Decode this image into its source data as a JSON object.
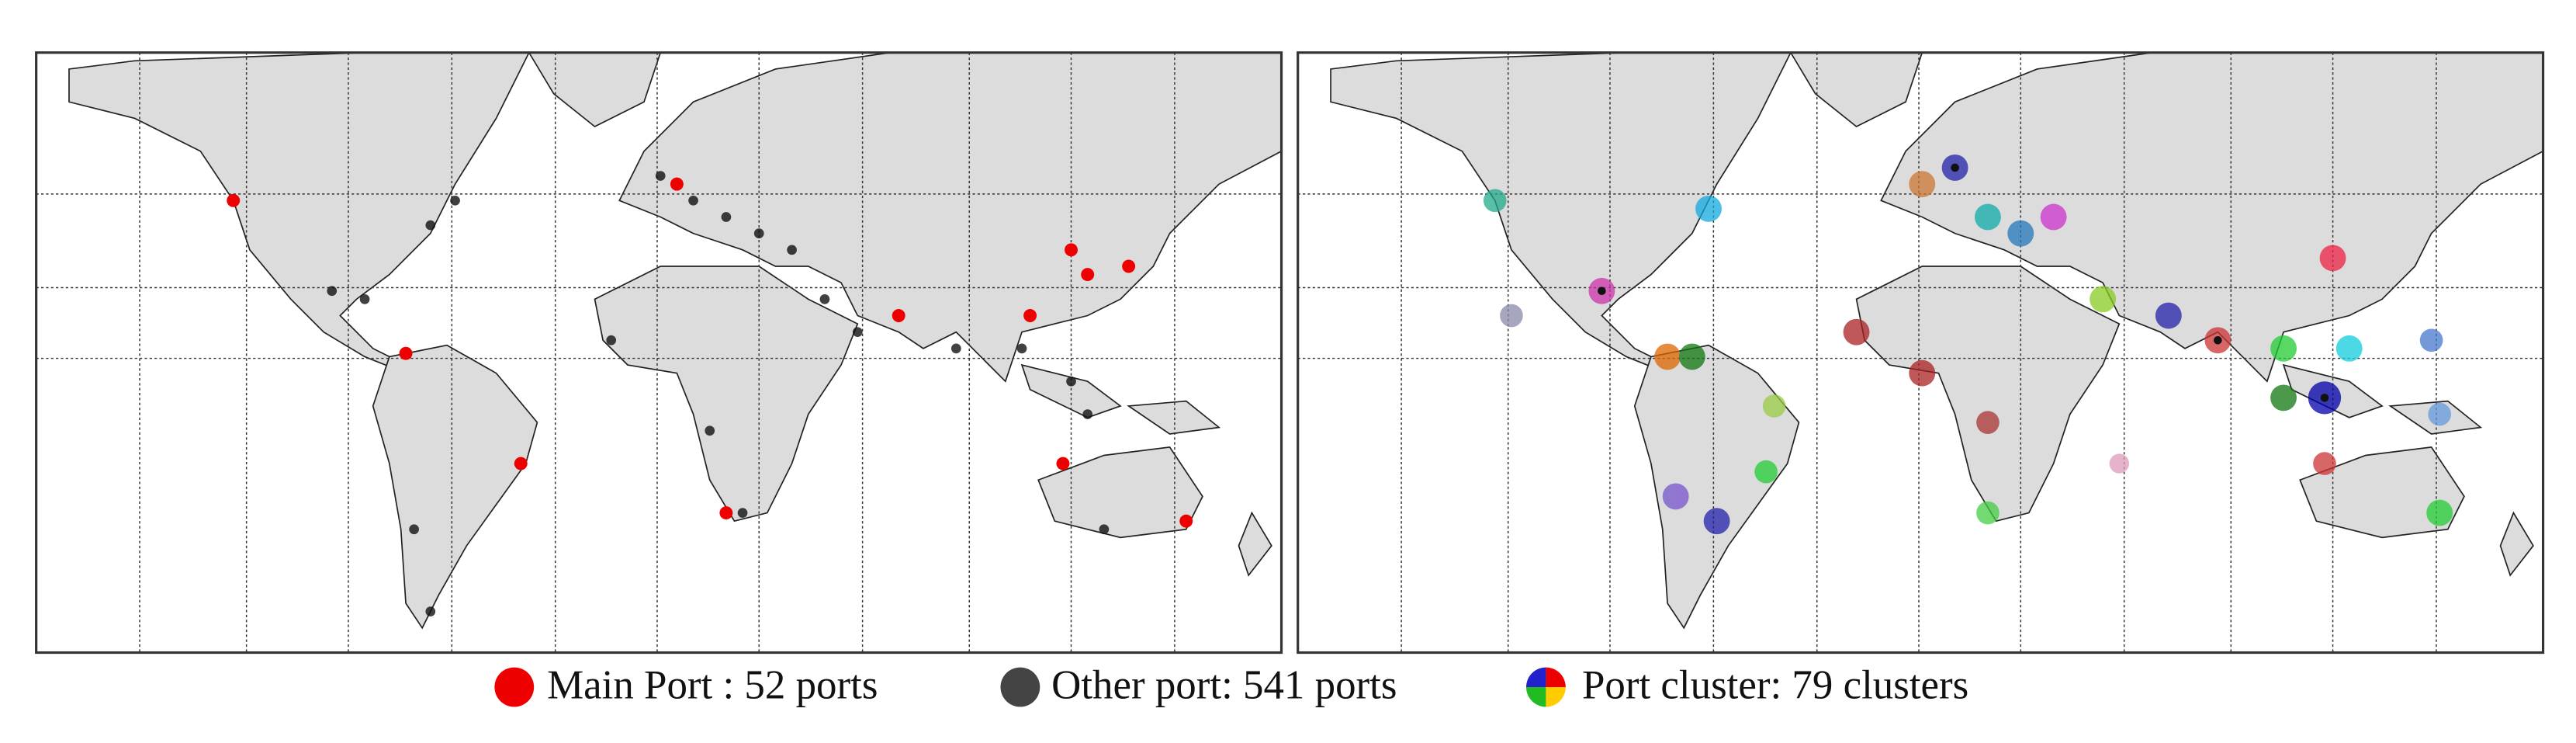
{
  "legend": {
    "items": [
      {
        "label": "Main Port : 52 ports"
      },
      {
        "label": "Other port: 541 ports"
      },
      {
        "label": "Port cluster: 79 clusters"
      }
    ]
  }
}
